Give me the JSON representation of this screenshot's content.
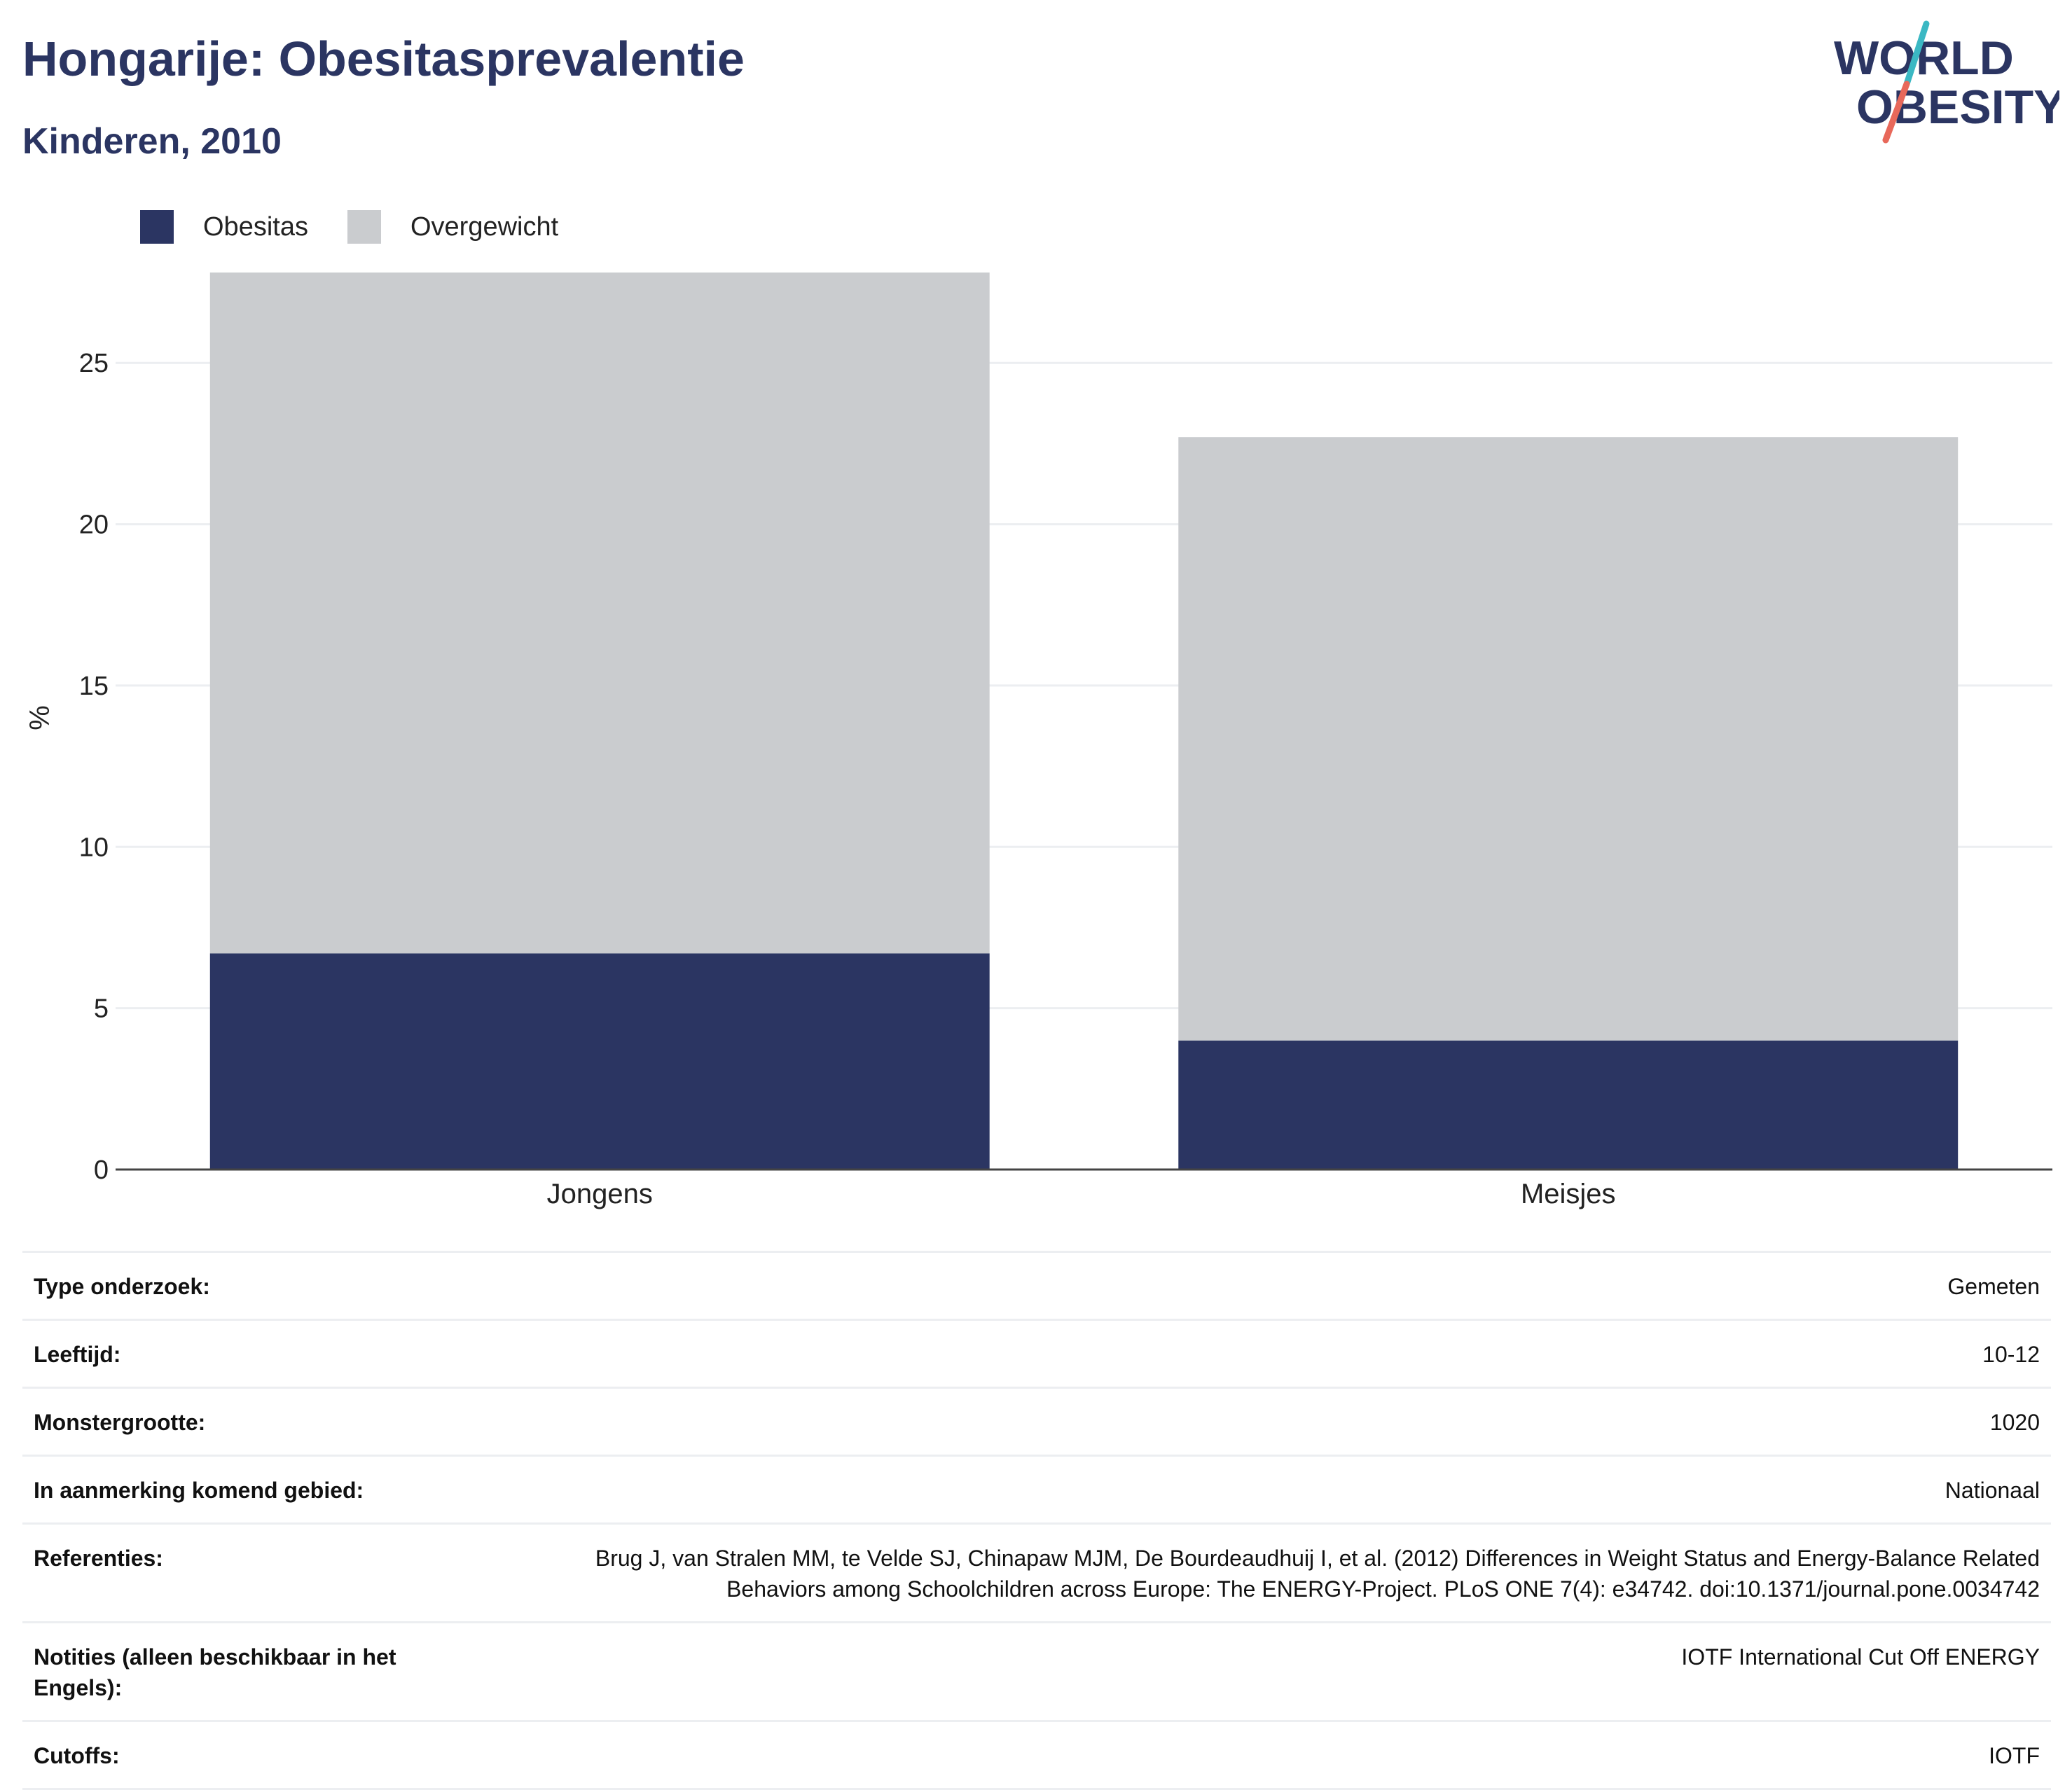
{
  "header": {
    "title": "Hongarije: Obesitasprevalentie",
    "subtitle": "Kinderen, 2010"
  },
  "logo": {
    "line1": "WORLD",
    "line2": "OBESITY",
    "colors": {
      "text": "#2b3562",
      "slash_top": "#3bb8c3",
      "slash_bottom": "#e8685a"
    }
  },
  "legend": [
    {
      "label": "Obesitas",
      "color": "#2b3562"
    },
    {
      "label": "Overgewicht",
      "color": "#cacccf"
    }
  ],
  "chart_data": {
    "type": "bar",
    "stacked": true,
    "categories": [
      "Jongens",
      "Meisjes"
    ],
    "series": [
      {
        "name": "Obesitas",
        "values": [
          6.7,
          4.0
        ],
        "color": "#2b3562"
      },
      {
        "name": "Overgewicht",
        "values": [
          21.1,
          18.7
        ],
        "color": "#cacccf"
      }
    ],
    "ylabel": "%",
    "ylim": [
      0,
      28
    ],
    "yticks": [
      0,
      5,
      10,
      15,
      20,
      25
    ],
    "grid": true,
    "legend_position": "top-left"
  },
  "info": [
    {
      "key": "Type onderzoek:",
      "value": "Gemeten"
    },
    {
      "key": "Leeftijd:",
      "value": "10-12"
    },
    {
      "key": "Monstergrootte:",
      "value": "1020"
    },
    {
      "key": "In aanmerking komend gebied:",
      "value": "Nationaal"
    },
    {
      "key": "Referenties:",
      "value": "Brug J, van Stralen MM, te Velde SJ, Chinapaw MJM, De Bourdeaudhuij I, et al. (2012) Differences in Weight Status and Energy-Balance Related Behaviors among Schoolchildren across Europe: The ENERGY-Project. PLoS ONE 7(4): e34742. doi:10.1371/journal.pone.0034742"
    },
    {
      "key": "Notities (alleen beschikbaar in het Engels):",
      "value": "IOTF International Cut Off ENERGY"
    },
    {
      "key": "Cutoffs:",
      "value": "IOTF"
    }
  ]
}
